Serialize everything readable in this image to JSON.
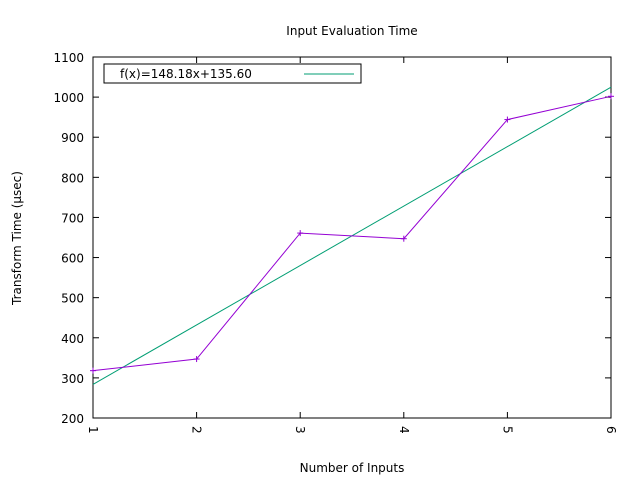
{
  "chart_data": {
    "type": "line",
    "title": "Input Evaluation Time",
    "xlabel": "Number of Inputs",
    "ylabel": "Transform Time (µsec)",
    "xlim": [
      1,
      6
    ],
    "ylim": [
      200,
      1100
    ],
    "x_ticks": [
      1,
      2,
      3,
      4,
      5,
      6
    ],
    "y_ticks": [
      200,
      300,
      400,
      500,
      600,
      700,
      800,
      900,
      1000,
      1100
    ],
    "grid": false,
    "legend": {
      "position": "top-left"
    },
    "series": [
      {
        "x": [
          1,
          2,
          3,
          4,
          5,
          6
        ],
        "y": [
          318,
          347,
          661,
          647,
          944,
          1002
        ],
        "color": "#9400d3",
        "marker": "plus"
      },
      {
        "name": "f(x)=148.18x+135.60",
        "type": "fit",
        "slope": 148.18,
        "intercept": 135.6,
        "color": "#009e73"
      }
    ]
  }
}
